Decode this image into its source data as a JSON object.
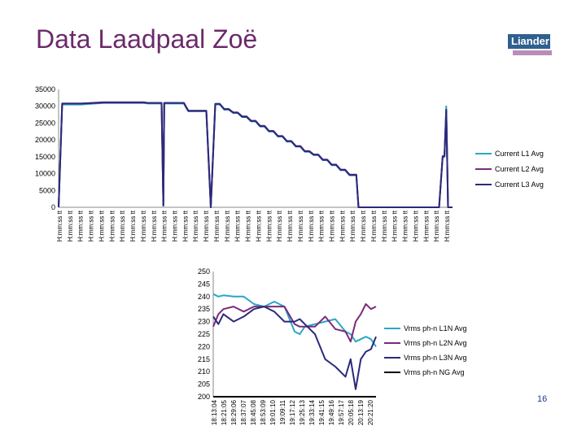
{
  "header": {
    "title": "Data Laadpaal Zoë",
    "logo_text": "Liander",
    "slide_number": "16"
  },
  "colors": {
    "title": "#6b2a6b",
    "logo": "#2f5f8e",
    "l1": "#2aa6c6",
    "l2": "#7b2a7b",
    "l3": "#2b2a7a",
    "ng": "#000000"
  },
  "chart_data": [
    {
      "type": "line",
      "title": "",
      "xlabel": "",
      "ylabel": "",
      "ylim": [
        0,
        35000
      ],
      "yticks": [
        0,
        5000,
        10000,
        15000,
        20000,
        25000,
        30000,
        35000
      ],
      "x_tick_label": "H:mm:ss tt",
      "x_tick_count": 38,
      "legend_position": "right",
      "x": [
        0,
        0.4,
        0.8,
        1.5,
        5,
        10,
        19,
        20,
        21,
        22,
        23,
        23.4,
        23.6,
        24,
        27,
        28,
        28.5,
        29,
        33,
        34,
        35,
        36,
        37,
        38,
        39,
        40,
        41,
        42,
        43,
        44,
        45,
        46,
        47,
        48,
        49,
        50,
        51,
        52,
        53,
        54,
        55,
        56,
        57,
        58,
        59,
        60,
        61,
        62,
        63,
        64,
        65,
        66,
        66.5,
        67,
        69,
        70,
        73,
        74,
        85,
        85.8,
        86.2,
        86.6,
        87,
        88
      ],
      "series": [
        {
          "name": "Current L1 Avg",
          "values": [
            0,
            15000,
            30500,
            30500,
            30500,
            31000,
            31000,
            30800,
            30800,
            30800,
            30800,
            500,
            30800,
            30800,
            30800,
            30800,
            29500,
            28500,
            28500,
            0,
            30500,
            30500,
            29000,
            29000,
            28000,
            28000,
            26800,
            26800,
            25500,
            25500,
            24000,
            24000,
            22500,
            22500,
            21000,
            21000,
            19500,
            19500,
            18000,
            18000,
            16500,
            16500,
            15500,
            15500,
            14000,
            14000,
            12500,
            12500,
            11000,
            11000,
            9500,
            9500,
            9500,
            0,
            0,
            0,
            0,
            0,
            0,
            15000,
            15000,
            30000,
            0,
            0
          ]
        },
        {
          "name": "Current L2 Avg",
          "values": [
            0,
            15500,
            30800,
            30800,
            30800,
            31200,
            31200,
            31000,
            31000,
            31000,
            31000,
            500,
            31000,
            31000,
            31000,
            31000,
            29800,
            28700,
            28700,
            0,
            30700,
            30700,
            29200,
            29200,
            28200,
            28200,
            27000,
            27000,
            25700,
            25700,
            24200,
            24200,
            22700,
            22700,
            21200,
            21200,
            19700,
            19700,
            18200,
            18200,
            16700,
            16700,
            15700,
            15700,
            14200,
            14200,
            12700,
            12700,
            11200,
            11200,
            9700,
            9700,
            9700,
            0,
            0,
            0,
            0,
            0,
            0,
            15200,
            15200,
            28800,
            0,
            0
          ]
        },
        {
          "name": "Current L3 Avg",
          "values": [
            0,
            15500,
            30800,
            30800,
            30800,
            31100,
            31100,
            31000,
            31000,
            31000,
            31000,
            500,
            31000,
            31000,
            31000,
            31000,
            29700,
            28600,
            28600,
            0,
            30700,
            30700,
            29100,
            29100,
            28100,
            28100,
            26900,
            26900,
            25600,
            25600,
            24100,
            24100,
            22600,
            22600,
            21100,
            21100,
            19600,
            19600,
            18100,
            18100,
            16600,
            16600,
            15600,
            15600,
            14100,
            14100,
            12600,
            12600,
            11100,
            11100,
            9600,
            9600,
            9600,
            0,
            0,
            0,
            0,
            0,
            0,
            15100,
            15100,
            29000,
            0,
            0
          ]
        }
      ]
    },
    {
      "type": "line",
      "title": "",
      "xlabel": "",
      "ylabel": "",
      "ylim": [
        200,
        250
      ],
      "yticks": [
        200,
        205,
        210,
        215,
        220,
        225,
        230,
        235,
        240,
        245,
        250
      ],
      "categories": [
        "18:13:04",
        "18:21:05",
        "18:29:06",
        "18:37:07",
        "18:45:08",
        "18:53:09",
        "19:01:10",
        "19:09:11",
        "19:17:12",
        "19:25:13",
        "19:33:14",
        "19:41:15",
        "19:49:16",
        "19:57:17",
        "20:05:18",
        "20:13:19",
        "20:21:20"
      ],
      "legend_position": "right",
      "x": [
        0,
        0.5,
        1,
        2,
        3,
        4,
        5,
        6,
        7,
        8,
        8.5,
        9,
        10,
        11,
        12,
        13,
        13.5,
        14,
        14.5,
        15,
        15.5,
        16
      ],
      "series": [
        {
          "name": "Vrms ph-n L1N Avg",
          "values": [
            241,
            240,
            240.5,
            240,
            240,
            237,
            236,
            238,
            236,
            226,
            225,
            228,
            229,
            230,
            231,
            226,
            225,
            222,
            223,
            224,
            223,
            220
          ]
        },
        {
          "name": "Vrms ph-n L2N Avg",
          "values": [
            228,
            233,
            235,
            236,
            234,
            236,
            236,
            236,
            236,
            229,
            228,
            228,
            228,
            232,
            227,
            226,
            222,
            230,
            233,
            237,
            235,
            236
          ]
        },
        {
          "name": "Vrms ph-n L3N Avg",
          "values": [
            232,
            229,
            233,
            230,
            232,
            235,
            236,
            234,
            230,
            230,
            231,
            229,
            225,
            215,
            212,
            208,
            215,
            203,
            215,
            218,
            219,
            224
          ]
        },
        {
          "name": "Vrms ph-n NG Avg",
          "values": [
            200,
            200,
            200,
            200,
            200,
            200,
            200,
            200,
            200,
            200,
            200,
            200,
            200,
            200,
            200,
            200,
            200,
            200,
            200,
            200,
            200,
            200
          ]
        }
      ]
    }
  ]
}
